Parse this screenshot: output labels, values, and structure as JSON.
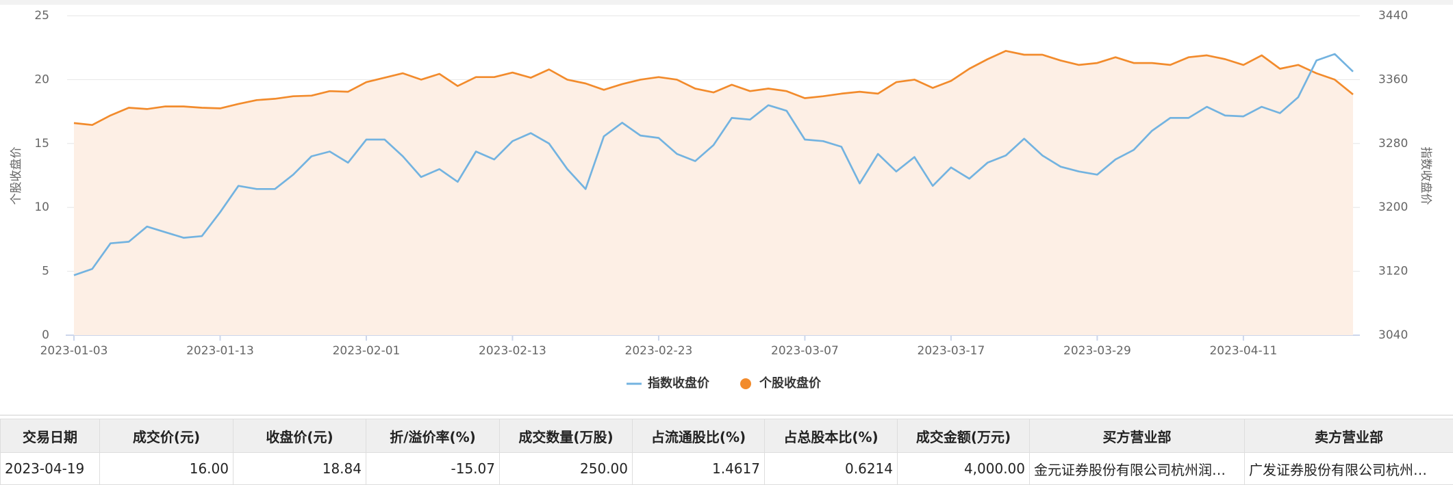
{
  "chart_data": {
    "type": "line",
    "y_label": "个股收盘价",
    "y2_label": "指数收盘价",
    "categories": [
      "2023-01-03",
      null,
      null,
      null,
      null,
      null,
      null,
      null,
      "2023-01-13",
      null,
      null,
      null,
      null,
      null,
      null,
      null,
      "2023-02-01",
      null,
      null,
      null,
      null,
      null,
      null,
      null,
      "2023-02-13",
      null,
      null,
      null,
      null,
      null,
      null,
      null,
      "2023-02-23",
      null,
      null,
      null,
      null,
      null,
      null,
      null,
      "2023-03-07",
      null,
      null,
      null,
      null,
      null,
      null,
      null,
      "2023-03-17",
      null,
      null,
      null,
      null,
      null,
      null,
      null,
      "2023-03-29",
      null,
      null,
      null,
      null,
      null,
      null,
      null,
      "2023-04-11",
      null,
      null,
      null,
      null,
      null,
      null
    ],
    "series": [
      {
        "name": "指数收盘价",
        "color": "#73b3e0",
        "axis": "y2",
        "values": [
          3115,
          3123,
          3155,
          3157,
          3176,
          3169,
          3162,
          3164,
          3194,
          3227,
          3223,
          3223,
          3241,
          3264,
          3270,
          3256,
          3285,
          3285,
          3264,
          3238,
          3248,
          3232,
          3270,
          3260,
          3283,
          3293,
          3280,
          3248,
          3223,
          3289,
          3306,
          3290,
          3287,
          3267,
          3258,
          3278,
          3312,
          3310,
          3328,
          3321,
          3285,
          3283,
          3276,
          3230,
          3267,
          3245,
          3263,
          3227,
          3250,
          3236,
          3256,
          3265,
          3286,
          3265,
          3251,
          3245,
          3241,
          3260,
          3272,
          3296,
          3312,
          3312,
          3326,
          3315,
          3314,
          3326,
          3318,
          3338,
          3384,
          3392,
          3370
        ]
      },
      {
        "name": "个股收盘价",
        "color": "#f28b2c",
        "area_color": "#fdefe5",
        "values": [
          16.6,
          16.45,
          17.2,
          17.8,
          17.7,
          17.9,
          17.9,
          17.8,
          17.75,
          18.1,
          18.4,
          18.5,
          18.7,
          18.75,
          19.1,
          19.05,
          19.8,
          20.15,
          20.5,
          20.0,
          20.45,
          19.5,
          20.2,
          20.2,
          20.55,
          20.15,
          20.8,
          20.0,
          19.7,
          19.2,
          19.65,
          20.0,
          20.2,
          20.0,
          19.3,
          19.0,
          19.6,
          19.1,
          19.3,
          19.1,
          18.55,
          18.7,
          18.9,
          19.05,
          18.9,
          19.8,
          20.0,
          19.35,
          19.9,
          20.85,
          21.6,
          22.25,
          21.95,
          21.95,
          21.5,
          21.15,
          21.3,
          21.75,
          21.3,
          21.3,
          21.15,
          21.75,
          21.9,
          21.6,
          21.15,
          21.9,
          20.85,
          21.15,
          20.5,
          20.0,
          18.84
        ]
      }
    ],
    "ylim": [
      0,
      25
    ],
    "yticks": [
      0,
      5,
      10,
      15,
      20,
      25
    ],
    "y2lim": [
      3040,
      3440
    ],
    "y2ticks": [
      3040,
      3120,
      3200,
      3280,
      3360,
      3440
    ],
    "grid": true,
    "legend": "bottom"
  },
  "table": {
    "headers": [
      "交易日期",
      "成交价(元)",
      "收盘价(元)",
      "折/溢价率(%)",
      "成交数量(万股)",
      "占流通股比(%)",
      "占总股本比(%)",
      "成交金额(万元)",
      "买方营业部",
      "卖方营业部"
    ],
    "rows": [
      [
        "2023-04-19",
        "16.00",
        "18.84",
        "-15.07",
        "250.00",
        "1.4617",
        "0.6214",
        "4,000.00",
        "金元证券股份有限公司杭州润…",
        "广发证券股份有限公司杭州…"
      ]
    ]
  }
}
